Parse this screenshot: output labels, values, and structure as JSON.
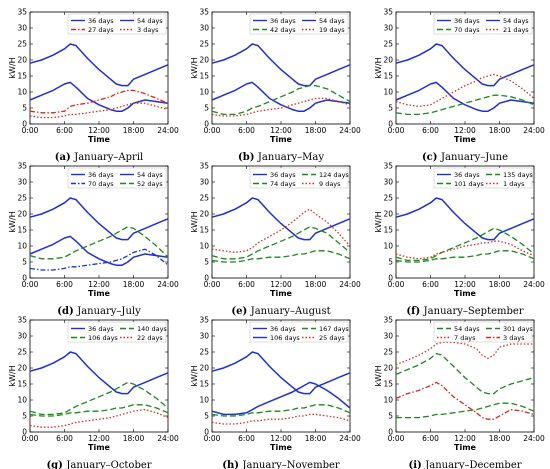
{
  "figure": {
    "common": {
      "type": "line",
      "xlabel": "Time",
      "ylabel": "kW/H",
      "xticks": [
        "0:00",
        "6:00",
        "12:00",
        "18:00",
        "24:00"
      ],
      "yticks": [
        "0",
        "5",
        "10",
        "15",
        "20",
        "25",
        "30",
        "35"
      ],
      "xlim": [
        0,
        24
      ],
      "ylim": [
        0,
        35
      ]
    }
  },
  "chart_data": [
    {
      "type": "line",
      "letter": "(a)",
      "caption": "January–April",
      "x": [
        0,
        2,
        4,
        6,
        7,
        8,
        10,
        12,
        14,
        15,
        16,
        17,
        18,
        20,
        22,
        24
      ],
      "series": [
        {
          "name": "36 days",
          "color": "#1f2fd6",
          "style": "solid",
          "values": [
            19,
            20,
            21.5,
            23.5,
            25,
            24.5,
            20.5,
            17,
            14,
            12.5,
            12,
            12,
            14,
            15.5,
            17,
            18.5
          ]
        },
        {
          "name": "54 days",
          "color": "#1f2fd6",
          "style": "solid",
          "values": [
            7.5,
            9,
            10.5,
            12.5,
            13,
            11.5,
            8,
            6,
            4.5,
            4,
            4,
            5,
            6.5,
            7.5,
            7,
            6.5
          ]
        },
        {
          "name": "27 days",
          "color": "#d62a1f",
          "style": "dashdot",
          "values": [
            4,
            3.5,
            3.5,
            4,
            5.5,
            6,
            6.5,
            7.5,
            8.5,
            9.5,
            10,
            10.5,
            10.5,
            9.5,
            8,
            6.5
          ]
        },
        {
          "name": "3 days",
          "color": "#d62a1f",
          "style": "dotted",
          "values": [
            2.5,
            2,
            2,
            2.5,
            3,
            3,
            3.5,
            4,
            4.5,
            5,
            5.5,
            6,
            6.5,
            6.5,
            5.5,
            4.5
          ]
        }
      ]
    },
    {
      "type": "line",
      "letter": "(b)",
      "caption": "January–May",
      "x": [
        0,
        2,
        4,
        6,
        7,
        8,
        10,
        12,
        14,
        15,
        16,
        17,
        18,
        20,
        22,
        24
      ],
      "series": [
        {
          "name": "36 days",
          "color": "#1f2fd6",
          "style": "solid",
          "values": [
            19,
            20,
            21.5,
            23.5,
            25,
            24.5,
            20.5,
            17,
            14,
            12.5,
            12,
            12,
            14,
            15.5,
            17,
            18.5
          ]
        },
        {
          "name": "54 days",
          "color": "#1f2fd6",
          "style": "solid",
          "values": [
            7.5,
            9,
            10.5,
            12.5,
            13,
            11.5,
            8,
            6,
            4.5,
            4,
            4,
            5,
            6.5,
            7.5,
            7,
            6.5
          ]
        },
        {
          "name": "42 days",
          "color": "#1a8a1a",
          "style": "dashed",
          "values": [
            4,
            3,
            3,
            4,
            5,
            5.5,
            7,
            8.5,
            10,
            11,
            11.5,
            12,
            12,
            11,
            9,
            7
          ]
        },
        {
          "name": "19 days",
          "color": "#d62a1f",
          "style": "dotted",
          "values": [
            3,
            2.5,
            2.5,
            3,
            3.5,
            4,
            4.5,
            5,
            6,
            6.5,
            7,
            7.5,
            8,
            8,
            7,
            6
          ]
        }
      ]
    },
    {
      "type": "line",
      "letter": "(c)",
      "caption": "January–June",
      "x": [
        0,
        2,
        4,
        6,
        7,
        8,
        10,
        12,
        14,
        15,
        16,
        17,
        18,
        20,
        22,
        24
      ],
      "series": [
        {
          "name": "36 days",
          "color": "#1f2fd6",
          "style": "solid",
          "values": [
            19,
            20,
            21.5,
            23.5,
            25,
            24.5,
            20.5,
            17,
            14,
            12.5,
            12,
            12,
            14,
            15.5,
            17,
            18.5
          ]
        },
        {
          "name": "54 days",
          "color": "#1f2fd6",
          "style": "solid",
          "values": [
            7.5,
            9,
            10.5,
            12.5,
            13,
            11.5,
            8,
            6,
            4.5,
            4,
            4,
            5,
            6.5,
            7.5,
            7,
            6.5
          ]
        },
        {
          "name": "70 days",
          "color": "#1a8a1a",
          "style": "dashed",
          "values": [
            3.5,
            3,
            3,
            3.5,
            4,
            4.5,
            5.5,
            6.5,
            7.5,
            8,
            8.5,
            9,
            9,
            8.5,
            7.5,
            6
          ]
        },
        {
          "name": "21 days",
          "color": "#d62a1f",
          "style": "dotted",
          "values": [
            7,
            6,
            5.5,
            6,
            7,
            8,
            10,
            12,
            13.5,
            14.5,
            15,
            15.5,
            15,
            13.5,
            11,
            8
          ]
        }
      ]
    },
    {
      "type": "line",
      "letter": "(d)",
      "caption": "January–July",
      "x": [
        0,
        2,
        4,
        6,
        7,
        8,
        10,
        12,
        14,
        15,
        16,
        17,
        18,
        20,
        22,
        24
      ],
      "series": [
        {
          "name": "36 days",
          "color": "#1f2fd6",
          "style": "solid",
          "values": [
            19,
            20,
            21.5,
            23.5,
            25,
            24.5,
            20.5,
            17,
            14,
            12.5,
            12,
            12,
            14,
            15.5,
            17,
            18.5
          ]
        },
        {
          "name": "54 days",
          "color": "#1f2fd6",
          "style": "solid",
          "values": [
            7.5,
            9,
            10.5,
            12.5,
            13,
            11.5,
            8,
            6,
            4.5,
            4,
            4,
            5,
            6.5,
            7.5,
            7,
            6.5
          ]
        },
        {
          "name": "70 days",
          "color": "#1f2fd6",
          "style": "dashdot",
          "values": [
            3,
            2.5,
            2.5,
            3,
            3.5,
            3.5,
            4,
            4.5,
            5,
            5.5,
            6,
            7,
            8,
            9,
            7,
            4
          ]
        },
        {
          "name": "52 days",
          "color": "#1a8a1a",
          "style": "dashed",
          "values": [
            7,
            6,
            6,
            6.5,
            7.5,
            8.5,
            10,
            11.5,
            13,
            14,
            15,
            16,
            15.5,
            13,
            10,
            6.5
          ]
        }
      ]
    },
    {
      "type": "line",
      "letter": "(e)",
      "caption": "January–August",
      "x": [
        0,
        2,
        4,
        6,
        7,
        8,
        10,
        12,
        14,
        15,
        16,
        17,
        18,
        20,
        22,
        24
      ],
      "series": [
        {
          "name": "36 days",
          "color": "#1f2fd6",
          "style": "solid",
          "values": [
            19,
            20,
            21.5,
            23.5,
            25,
            24.5,
            20.5,
            17,
            14,
            12.5,
            12,
            12,
            14,
            15.5,
            17,
            18.5
          ]
        },
        {
          "name": "124 days",
          "color": "#1a8a1a",
          "style": "dashed",
          "values": [
            5.5,
            5,
            5,
            5.5,
            6,
            6,
            6.5,
            6.5,
            7,
            7.5,
            7.5,
            8,
            8.5,
            8.5,
            7.5,
            6
          ]
        },
        {
          "name": "74 days",
          "color": "#1a8a1a",
          "style": "dashed",
          "values": [
            7,
            6,
            6,
            6.5,
            7.5,
            8.5,
            10,
            11.5,
            13,
            14,
            15,
            16,
            15.5,
            14,
            11,
            8
          ]
        },
        {
          "name": "9 days",
          "color": "#d62a1f",
          "style": "dotted",
          "values": [
            9,
            8.5,
            8,
            8.5,
            9.5,
            11,
            13,
            15,
            17.5,
            19,
            20.5,
            21.5,
            20,
            17.5,
            14,
            10
          ]
        }
      ]
    },
    {
      "type": "line",
      "letter": "(f)",
      "caption": "January–September",
      "x": [
        0,
        2,
        4,
        6,
        7,
        8,
        10,
        12,
        14,
        15,
        16,
        17,
        18,
        20,
        22,
        24
      ],
      "series": [
        {
          "name": "36 days",
          "color": "#1f2fd6",
          "style": "solid",
          "values": [
            19,
            20,
            21.5,
            23.5,
            25,
            24.5,
            20.5,
            17,
            14,
            12.5,
            12,
            12,
            14,
            15.5,
            17,
            18.5
          ]
        },
        {
          "name": "135 days",
          "color": "#1a8a1a",
          "style": "dashed",
          "values": [
            5.5,
            5,
            5,
            5.5,
            6,
            6,
            6.5,
            6.5,
            7,
            7.5,
            7.5,
            8,
            8.5,
            8.5,
            7.5,
            6
          ]
        },
        {
          "name": "101 days",
          "color": "#1a8a1a",
          "style": "dashed",
          "values": [
            6.5,
            5.5,
            5.5,
            6,
            7,
            8,
            9.5,
            11,
            12.5,
            13.5,
            14.5,
            15.5,
            15,
            13,
            10.5,
            7.5
          ]
        },
        {
          "name": "1 days",
          "color": "#d62a1f",
          "style": "dotted",
          "values": [
            7.5,
            6.5,
            6,
            6.5,
            7.5,
            8,
            9,
            10,
            10.5,
            11,
            11,
            11.5,
            11.5,
            10.5,
            8.5,
            7
          ]
        }
      ]
    },
    {
      "type": "line",
      "letter": "(g)",
      "caption": "January–October",
      "x": [
        0,
        2,
        4,
        6,
        7,
        8,
        10,
        12,
        14,
        15,
        16,
        17,
        18,
        20,
        22,
        24
      ],
      "series": [
        {
          "name": "36 days",
          "color": "#1f2fd6",
          "style": "solid",
          "values": [
            19,
            20,
            21.5,
            23.5,
            25,
            24.5,
            20.5,
            17,
            14,
            12.5,
            12,
            12,
            14,
            15.5,
            17,
            18.5
          ]
        },
        {
          "name": "140 days",
          "color": "#1a8a1a",
          "style": "dashed",
          "values": [
            5.5,
            5,
            5,
            5.5,
            6,
            6,
            6.5,
            6.5,
            7,
            7.5,
            7.5,
            8,
            8.5,
            8.5,
            7.5,
            6
          ]
        },
        {
          "name": "106 days",
          "color": "#1a8a1a",
          "style": "dashed",
          "values": [
            6.5,
            5.5,
            5.5,
            6,
            7,
            8,
            9.5,
            11,
            12.5,
            13.5,
            14.5,
            15.5,
            15,
            13,
            10.5,
            7.5
          ]
        },
        {
          "name": "22 days",
          "color": "#d62a1f",
          "style": "dotted",
          "values": [
            2,
            1.5,
            1.5,
            2,
            2.5,
            3,
            3.5,
            4,
            4.5,
            5,
            5.5,
            6,
            6.5,
            7,
            6,
            4.5
          ]
        }
      ]
    },
    {
      "type": "line",
      "letter": "(h)",
      "caption": "January–November",
      "x": [
        0,
        2,
        4,
        6,
        7,
        8,
        10,
        12,
        14,
        15,
        16,
        17,
        18,
        20,
        22,
        24
      ],
      "series": [
        {
          "name": "36 days",
          "color": "#1f2fd6",
          "style": "solid",
          "values": [
            19,
            20,
            21.5,
            23.5,
            25,
            24.5,
            20.5,
            17,
            14,
            12.5,
            12,
            12,
            14,
            15.5,
            17,
            18.5
          ]
        },
        {
          "name": "167 days",
          "color": "#1a8a1a",
          "style": "dashed",
          "values": [
            5.5,
            5,
            5,
            5.5,
            6,
            6,
            6.5,
            6.5,
            7,
            7.5,
            7.5,
            8,
            8.5,
            8.5,
            7.5,
            6
          ]
        },
        {
          "name": "106 days",
          "color": "#1f2fd6",
          "style": "solid",
          "values": [
            6.5,
            5.5,
            5.5,
            6,
            7,
            8,
            9.5,
            11,
            12.5,
            13.5,
            14.5,
            15.5,
            15,
            13,
            10.5,
            7.5
          ]
        },
        {
          "name": "25 days",
          "color": "#d62a1f",
          "style": "dotted",
          "values": [
            3,
            2.5,
            2.5,
            3,
            3.5,
            3.5,
            4,
            4,
            4.5,
            5,
            5,
            5.5,
            5.5,
            5,
            4.5,
            3.5
          ]
        }
      ]
    },
    {
      "type": "line",
      "letter": "(i)",
      "caption": "January–December",
      "x": [
        0,
        2,
        4,
        6,
        7,
        8,
        10,
        12,
        14,
        15,
        16,
        17,
        18,
        20,
        22,
        24
      ],
      "series": [
        {
          "name": "54 days",
          "color": "#1a8a1a",
          "style": "dashed",
          "values": [
            18,
            19.5,
            21,
            23,
            24.5,
            24,
            20.5,
            17,
            14,
            12.5,
            12,
            12,
            13.5,
            15,
            16,
            17
          ]
        },
        {
          "name": "301 days",
          "color": "#1a8a1a",
          "style": "dashed",
          "values": [
            4.5,
            4.5,
            4.5,
            5,
            5.5,
            5.5,
            6,
            6.5,
            7,
            7.5,
            8,
            8.5,
            9,
            9,
            8,
            6.5
          ]
        },
        {
          "name": "7 days",
          "color": "#d62a1f",
          "style": "dotted",
          "values": [
            21,
            22.5,
            24,
            26,
            27.5,
            28,
            28,
            27.5,
            26,
            24,
            23,
            24,
            26.5,
            27.5,
            27.5,
            27.5
          ]
        },
        {
          "name": "3 days",
          "color": "#d62a1f",
          "style": "dashdot",
          "values": [
            10.5,
            12,
            13,
            14.5,
            15.5,
            14.5,
            11,
            8.5,
            6,
            4.5,
            4,
            4,
            5,
            7,
            6.5,
            5.5
          ]
        }
      ]
    }
  ]
}
